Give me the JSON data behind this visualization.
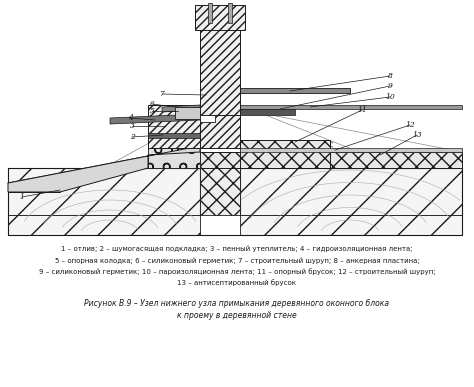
{
  "title": "Рисунок В.9 – Узел нижнего узла примыкания деревянного оконного блока",
  "title2": "к проему в деревянной стене",
  "legend_lines": [
    "1 – отлив; 2 – шумогасящая подкладка; 3 – пенный утеплитель; 4 – гидроизоляционная лента;",
    "5 – опорная колодка; 6 – силиконовый герметик; 7 – строительный шуруп; 8 – анкерная пластина;",
    "9 – силиконовый герметик; 10 – пароизоляционная лента; 11 – опорный брусок; 12 – строительный шуруп;",
    "13 – антисептированный брусок"
  ],
  "bg_color": "#ffffff",
  "line_color": "#1a1a1a"
}
